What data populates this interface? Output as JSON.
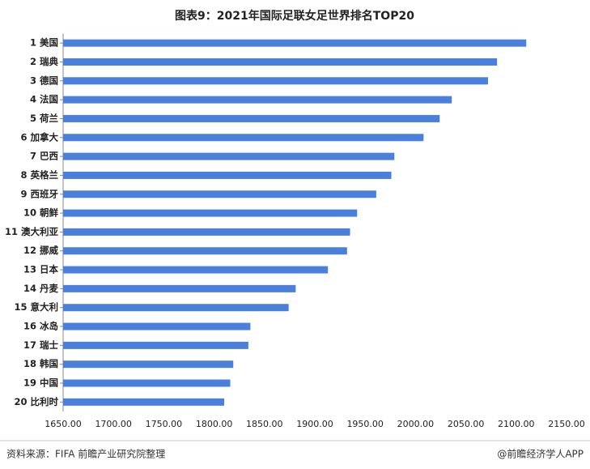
{
  "chart_data": {
    "type": "barh",
    "title": "图表9：2021年国际足联女足世界排名TOP20",
    "categories": [
      "1 美国",
      "2 瑞典",
      "3 德国",
      "4 法国",
      "5 荷兰",
      "6 加拿大",
      "7 巴西",
      "8 英格兰",
      "9 西班牙",
      "10 朝鲜",
      "11 澳大利亚",
      "12 挪威",
      "13 日本",
      "14 丹麦",
      "15 意大利",
      "16 冰岛",
      "17 瑞士",
      "18 韩国",
      "19 中国",
      "20 比利时"
    ],
    "values": [
      2110,
      2081,
      2072,
      2036,
      2024,
      2008,
      1979,
      1976,
      1961,
      1942,
      1935,
      1932,
      1913,
      1881,
      1874,
      1836,
      1834,
      1819,
      1816,
      1810
    ],
    "color": "#4a80dc",
    "xlim": [
      1650,
      2150
    ],
    "xticks": [
      {
        "value": 1650,
        "label": "1650.00"
      },
      {
        "value": 1700,
        "label": "1700.00"
      },
      {
        "value": 1750,
        "label": "1750.00"
      },
      {
        "value": 1800,
        "label": "1800.00"
      },
      {
        "value": 1850,
        "label": "1850.00"
      },
      {
        "value": 1900,
        "label": "1900.00"
      },
      {
        "value": 1950,
        "label": "1950.00"
      },
      {
        "value": 2000,
        "label": "2000.00"
      },
      {
        "value": 2050,
        "label": "2050.00"
      },
      {
        "value": 2100,
        "label": "2100.00"
      },
      {
        "value": 2150,
        "label": "2150.00"
      }
    ],
    "grid": false,
    "source": "资料来源：FIFA 前瞻产业研究院整理",
    "credit": "@前瞻经济学人APP"
  }
}
